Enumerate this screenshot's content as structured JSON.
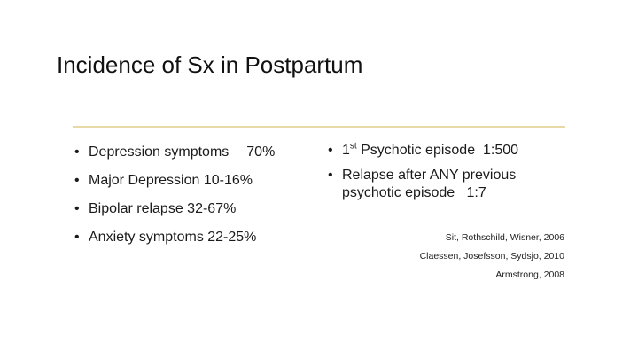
{
  "slide": {
    "title": "Incidence of Sx in Postpartum",
    "left_bullets": [
      {
        "label": "Depression symptoms",
        "value": "70%"
      },
      {
        "text": "Major Depression 10-16%"
      },
      {
        "text": "Bipolar relapse 32-67%"
      },
      {
        "text": "Anxiety symptoms 22-25%"
      }
    ],
    "right_bullets": [
      {
        "prefix": "1",
        "sup": "st",
        "rest": " Psychotic episode  1:500"
      },
      {
        "line1": "Relapse after ANY previous",
        "line2": "psychotic episode   1:7"
      }
    ],
    "references": [
      "Sit, Rothschild, Wisner, 2006",
      "Claessen, Josefsson, Sydsjo, 2010",
      "Armstrong, 2008"
    ],
    "bullet_glyph": "•",
    "colors": {
      "rule": "#e8d9a8",
      "text": "#1a1a1a"
    }
  }
}
